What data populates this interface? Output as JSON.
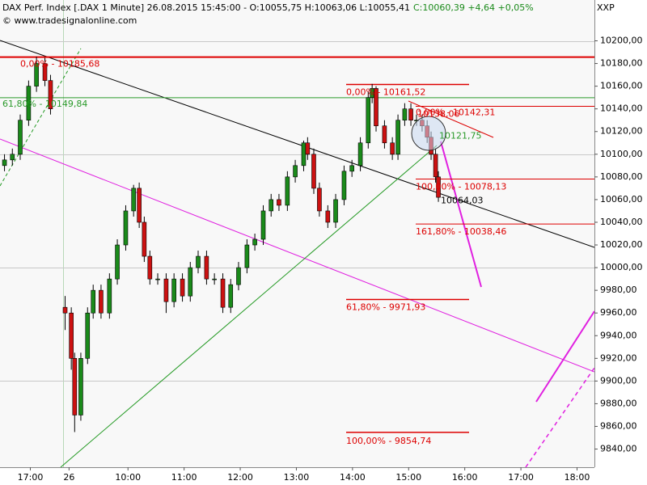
{
  "chart_data": {
    "type": "candlestick",
    "title": "DAX Perf. Index [.DAX  1 Minute] 26.08.2015 15:45:00 - O:10055,75 H:10063,06 L:10055,41",
    "change": "C:10060,39 +4,64 +0,05%",
    "source": "© www.tradesignalonline.com",
    "unit_label": "XXP",
    "up_color": "#1a8a1a",
    "down_color": "#cc1111",
    "grid": true,
    "xlim": [
      7.72,
      18.31
    ],
    "xticks": [
      {
        "value": 8.26,
        "label": "17:00"
      },
      {
        "value": 8.95,
        "label": "26"
      },
      {
        "value": 10,
        "label": "10:00"
      },
      {
        "value": 11,
        "label": "11:00"
      },
      {
        "value": 12,
        "label": "12:00"
      },
      {
        "value": 13,
        "label": "13:00"
      },
      {
        "value": 14,
        "label": "14:00"
      },
      {
        "value": 15,
        "label": "15:00"
      },
      {
        "value": 16,
        "label": "16:00"
      },
      {
        "value": 17,
        "label": "17:00"
      },
      {
        "value": 18,
        "label": "18:00"
      }
    ],
    "ylim": [
      9824,
      10236
    ],
    "yticks": [
      {
        "value": 9840,
        "label": "9840,00"
      },
      {
        "value": 9860,
        "label": "9860,00"
      },
      {
        "value": 9880,
        "label": "9880,00"
      },
      {
        "value": 9900,
        "label": "9900,00"
      },
      {
        "value": 9920,
        "label": "9920,00"
      },
      {
        "value": 9940,
        "label": "9940,00"
      },
      {
        "value": 9960,
        "label": "9960,00"
      },
      {
        "value": 9980,
        "label": "9980,00"
      },
      {
        "value": 10000,
        "label": "10000,00"
      },
      {
        "value": 10020,
        "label": "10020,00"
      },
      {
        "value": 10040,
        "label": "10040,00"
      },
      {
        "value": 10060,
        "label": "10060,00"
      },
      {
        "value": 10080,
        "label": "10080,00"
      },
      {
        "value": 10100,
        "label": "10100,00"
      },
      {
        "value": 10120,
        "label": "10120,00"
      },
      {
        "value": 10140,
        "label": "10140,00"
      },
      {
        "value": 10160,
        "label": "10160,00"
      },
      {
        "value": 10180,
        "label": "10180,00"
      },
      {
        "value": 10200,
        "label": "10200,00"
      }
    ],
    "grid_values": [
      9900,
      10000,
      10100,
      10200
    ],
    "x": [
      7.8,
      7.94,
      8.08,
      8.23,
      8.37,
      8.52,
      8.62,
      8.88,
      8.99,
      9.05,
      9.16,
      9.28,
      9.38,
      9.52,
      9.67,
      9.81,
      9.96,
      10.1,
      10.2,
      10.29,
      10.39,
      10.53,
      10.68,
      10.82,
      10.97,
      11.11,
      11.25,
      11.4,
      11.54,
      11.69,
      11.83,
      11.97,
      12.12,
      12.26,
      12.41,
      12.55,
      12.69,
      12.84,
      12.98,
      13.13,
      13.2,
      13.31,
      13.41,
      13.56,
      13.7,
      13.85,
      13.99,
      14.14,
      14.28,
      14.35,
      14.42,
      14.57,
      14.71,
      14.81,
      14.93,
      15.04,
      15.14,
      15.24,
      15.33,
      15.4,
      15.48,
      15.53
    ],
    "open": [
      10090,
      10095,
      10100,
      10130,
      10160,
      10180,
      10165,
      9965,
      9960,
      9920,
      9870,
      9920,
      9960,
      9980,
      9960,
      9990,
      10020,
      10050,
      10070,
      10040,
      10010,
      9990,
      9990,
      9970,
      9990,
      9975,
      10000,
      10010,
      9990,
      9990,
      9965,
      9985,
      10000,
      10020,
      10025,
      10050,
      10060,
      10055,
      10080,
      10090,
      10110,
      10100,
      10070,
      10050,
      10040,
      10060,
      10085,
      10090,
      10110,
      10150,
      10158,
      10125,
      10110,
      10100,
      10130,
      10140,
      10130,
      10130,
      10125,
      10115,
      10100,
      10080
    ],
    "high": [
      10100,
      10105,
      10135,
      10165,
      10186,
      10185,
      10170,
      9975,
      9965,
      9925,
      9925,
      9965,
      9985,
      9985,
      9995,
      10025,
      10055,
      10073,
      10075,
      10045,
      10015,
      9995,
      9995,
      9995,
      9995,
      10005,
      10015,
      10015,
      9995,
      9995,
      9990,
      10005,
      10025,
      10030,
      10055,
      10065,
      10065,
      10085,
      10095,
      10112,
      10115,
      10105,
      10075,
      10055,
      10065,
      10090,
      10095,
      10115,
      10155,
      10162,
      10160,
      10130,
      10115,
      10135,
      10145,
      10145,
      10135,
      10135,
      10130,
      10120,
      10105,
      10085
    ],
    "low": [
      10085,
      10090,
      10095,
      10125,
      10155,
      10160,
      10135,
      9945,
      9910,
      9855,
      9865,
      9915,
      9955,
      9955,
      9955,
      9985,
      10015,
      10045,
      10035,
      10005,
      9985,
      9985,
      9960,
      9965,
      9970,
      9970,
      9995,
      9985,
      9985,
      9960,
      9960,
      9980,
      9995,
      10015,
      10020,
      10045,
      10050,
      10050,
      10075,
      10085,
      10095,
      10065,
      10045,
      10035,
      10035,
      10055,
      10080,
      10085,
      10105,
      10145,
      10120,
      10105,
      10095,
      10095,
      10125,
      10125,
      10125,
      10120,
      10110,
      10095,
      10075,
      10058
    ],
    "close": [
      10095,
      10100,
      10130,
      10160,
      10180,
      10165,
      10140,
      9960,
      9920,
      9870,
      9920,
      9960,
      9980,
      9960,
      9990,
      10020,
      10050,
      10070,
      10040,
      10010,
      9990,
      9990,
      9970,
      9990,
      9975,
      10000,
      10010,
      9990,
      9990,
      9965,
      9985,
      10000,
      10020,
      10025,
      10050,
      10060,
      10055,
      10080,
      10090,
      10110,
      10100,
      10070,
      10050,
      10040,
      10060,
      10085,
      10090,
      10110,
      10150,
      10158,
      10125,
      10110,
      10100,
      10130,
      10140,
      10130,
      10130,
      10125,
      10115,
      10100,
      10080,
      10062
    ],
    "annotations": [
      {
        "label": "0,00% - 10185,68",
        "value": 10185.68,
        "color": "#dd0000"
      },
      {
        "label": "61,80% - 10149,84",
        "value": 10149.84,
        "color": "#2a9a2a"
      },
      {
        "label": "0,00% - 10161,52",
        "value": 10161.52,
        "color": "#dd0000"
      },
      {
        "label": "10138,06",
        "value": 10138.06,
        "color": "#dd0000"
      },
      {
        "label": "0,00% - 10142,31",
        "value": 10142.31,
        "color": "#dd0000"
      },
      {
        "label": "10121,75",
        "value": 10121.75,
        "color": "#2a9a2a"
      },
      {
        "label": "100,00% - 10078,13",
        "value": 10078.13,
        "color": "#dd0000"
      },
      {
        "label": "10064,03",
        "value": 10064.03,
        "color": "#000000"
      },
      {
        "label": "161,80% - 10038,46",
        "value": 10038.46,
        "color": "#dd0000"
      },
      {
        "label": "61,80% - 9971,93",
        "value": 9971.93,
        "color": "#dd0000"
      },
      {
        "label": "100,00% - 9854,74",
        "value": 9854.74,
        "color": "#dd0000"
      }
    ]
  }
}
